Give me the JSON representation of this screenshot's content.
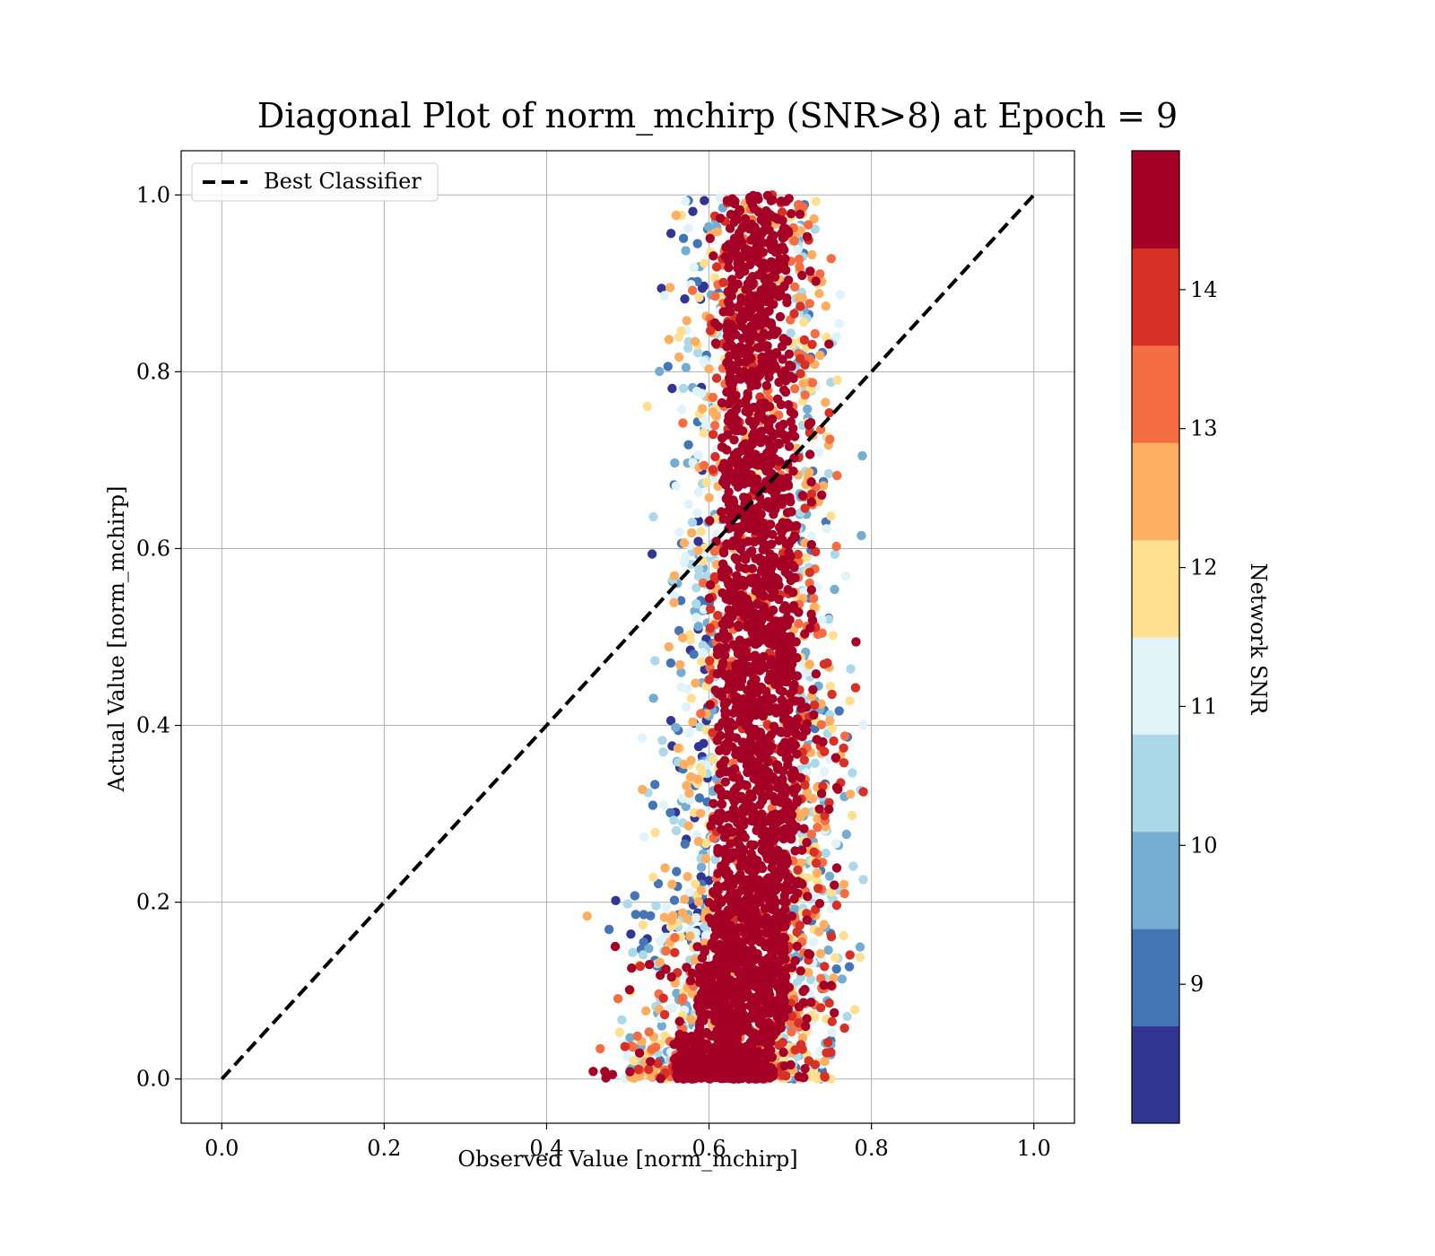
{
  "chart_data": {
    "type": "scatter",
    "title": "Diagonal Plot of norm_mchirp (SNR>8) at Epoch = 9",
    "xlabel": "Observed Value [norm_mchirp]",
    "ylabel": "Actual Value [norm_mchirp]",
    "xlim": [
      -0.05,
      1.05
    ],
    "ylim": [
      -0.05,
      1.05
    ],
    "xticks": [
      0.0,
      0.2,
      0.4,
      0.6,
      0.8,
      1.0
    ],
    "yticks": [
      0.0,
      0.2,
      0.4,
      0.6,
      0.8,
      1.0
    ],
    "xtick_labels": [
      "0.0",
      "0.2",
      "0.4",
      "0.6",
      "0.8",
      "1.0"
    ],
    "ytick_labels": [
      "0.0",
      "0.2",
      "0.4",
      "0.6",
      "0.8",
      "1.0"
    ],
    "grid": true,
    "legend": {
      "placement": "top-left",
      "entries": [
        {
          "label": "Best Classifier",
          "style": "dashed",
          "color": "#000000"
        }
      ]
    },
    "reference_line": {
      "x": [
        0.0,
        1.0
      ],
      "y": [
        0.0,
        1.0
      ]
    },
    "scatter_density": [
      {
        "y_range": [
          0.0,
          0.05
        ],
        "x_center": 0.62,
        "x_spread": 0.06,
        "x_min": 0.43,
        "x_max": 0.75
      },
      {
        "y_range": [
          0.05,
          0.2
        ],
        "x_center": 0.64,
        "x_spread": 0.055,
        "x_min": 0.45,
        "x_max": 0.79
      },
      {
        "y_range": [
          0.2,
          0.5
        ],
        "x_center": 0.66,
        "x_spread": 0.05,
        "x_min": 0.47,
        "x_max": 0.79
      },
      {
        "y_range": [
          0.5,
          0.8
        ],
        "x_center": 0.66,
        "x_spread": 0.045,
        "x_min": 0.49,
        "x_max": 0.8
      },
      {
        "y_range": [
          0.8,
          1.0
        ],
        "x_center": 0.66,
        "x_spread": 0.04,
        "x_min": 0.49,
        "x_max": 0.77
      }
    ],
    "colorbar": {
      "label": "Network SNR",
      "range": [
        8,
        15
      ],
      "ticks": [
        9,
        10,
        11,
        12,
        13,
        14
      ],
      "tick_labels": [
        "9",
        "10",
        "11",
        "12",
        "13",
        "14"
      ],
      "colors": [
        "#313695",
        "#4575b4",
        "#74add1",
        "#abd9e9",
        "#e0f3f8",
        "#fee090",
        "#fdae61",
        "#f46d43",
        "#d73027",
        "#a50026"
      ]
    }
  }
}
